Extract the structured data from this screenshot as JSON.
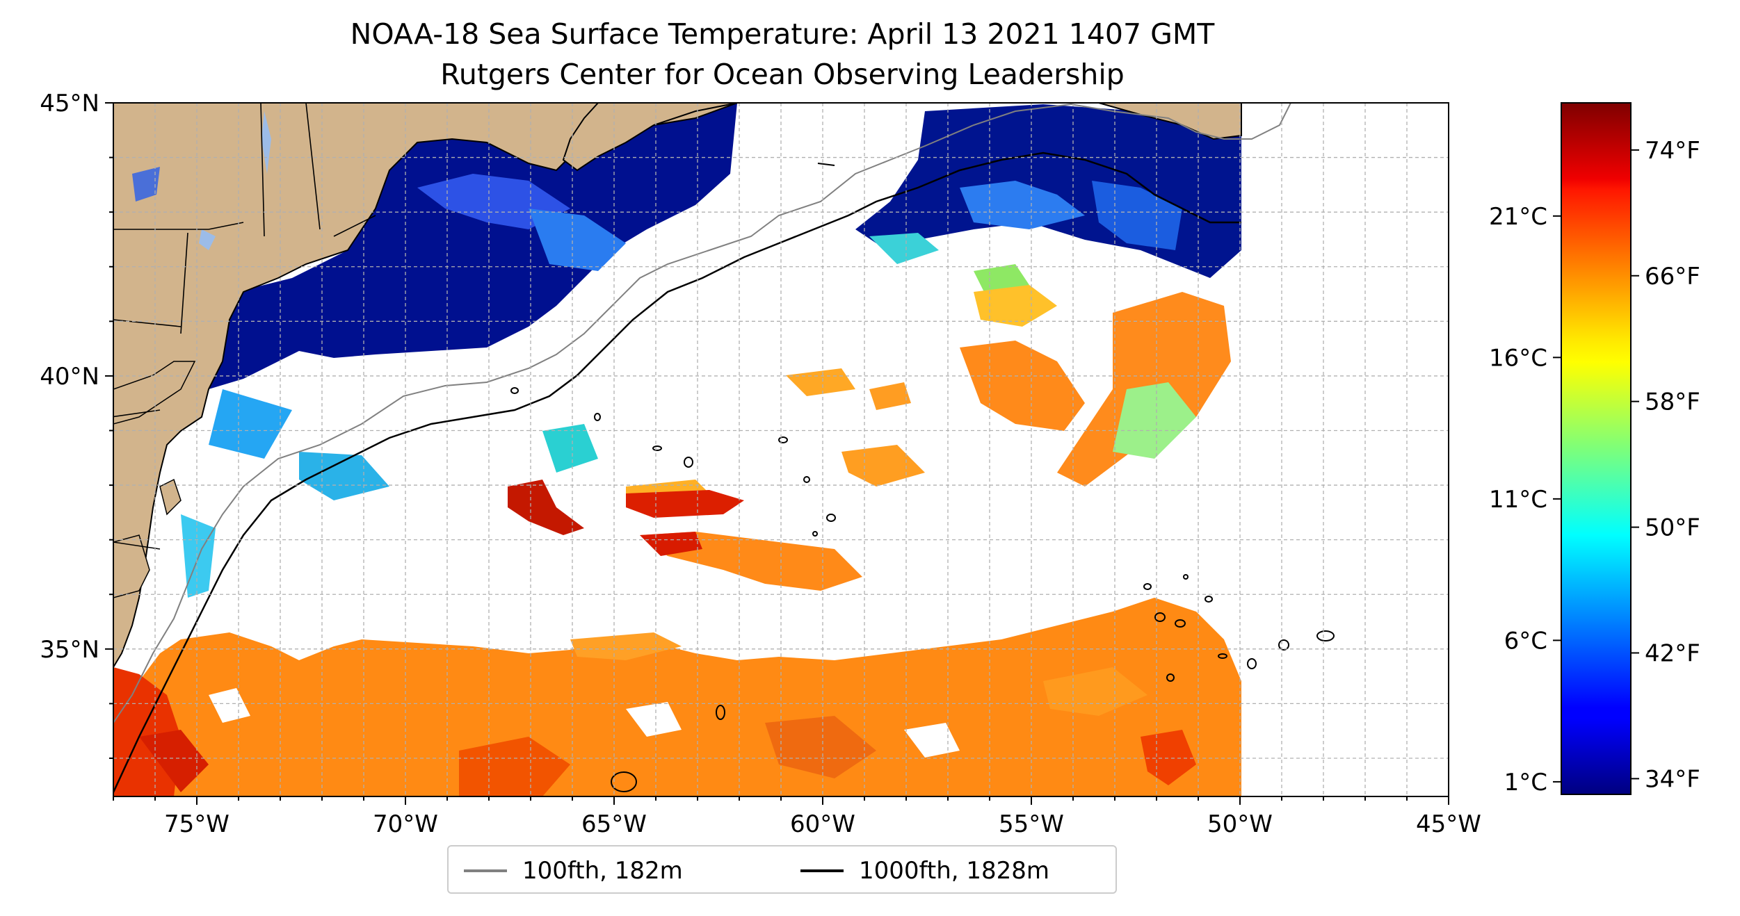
{
  "title": "NOAA-18 Sea Surface Temperature: April 13 2021 1407 GMT",
  "subtitle": "Rutgers Center for Ocean Observing Leadership",
  "map": {
    "lon_range": [
      -77,
      -45
    ],
    "lat_range": [
      32.3,
      45
    ],
    "lon_ticks": [
      {
        "value": -75,
        "label": "75°W"
      },
      {
        "value": -70,
        "label": "70°W"
      },
      {
        "value": -65,
        "label": "65°W"
      },
      {
        "value": -60,
        "label": "60°W"
      },
      {
        "value": -55,
        "label": "55°W"
      },
      {
        "value": -50,
        "label": "50°W"
      },
      {
        "value": -45,
        "label": "45°W"
      }
    ],
    "lat_ticks": [
      {
        "value": 35,
        "label": "35°N"
      },
      {
        "value": 40,
        "label": "40°N"
      },
      {
        "value": 45,
        "label": "45°N"
      }
    ],
    "grid": true,
    "colors": {
      "land": "#d2b48c",
      "lakes": "#9cbce8",
      "no_data": "#ffffff",
      "isobath_100": "#808080",
      "isobath_1000": "#000000"
    }
  },
  "colorbar": {
    "colormap": "jet",
    "range_f": [
      33,
      77
    ],
    "fahrenheit_ticks": [
      {
        "value": 34,
        "label": "34°F"
      },
      {
        "value": 42,
        "label": "42°F"
      },
      {
        "value": 50,
        "label": "50°F"
      },
      {
        "value": 58,
        "label": "58°F"
      },
      {
        "value": 66,
        "label": "66°F"
      },
      {
        "value": 74,
        "label": "74°F"
      }
    ],
    "celsius_ticks": [
      {
        "value": 1,
        "label": "1°C"
      },
      {
        "value": 6,
        "label": "6°C"
      },
      {
        "value": 11,
        "label": "11°C"
      },
      {
        "value": 16,
        "label": "16°C"
      },
      {
        "value": 21,
        "label": "21°C"
      }
    ]
  },
  "legend": {
    "items": [
      {
        "label": "100fth, 182m",
        "color": "#808080"
      },
      {
        "label": "1000fth, 1828m",
        "color": "#000000"
      }
    ]
  }
}
